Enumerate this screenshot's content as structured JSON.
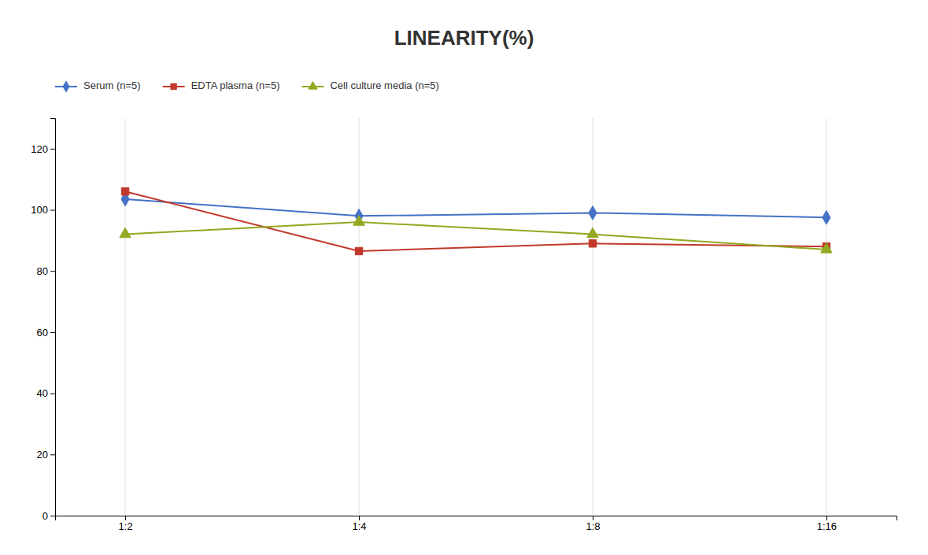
{
  "chart_data": {
    "type": "line",
    "title": "LINEARITY(%)",
    "categories": [
      "1:2",
      "1:4",
      "1:8",
      "1:16"
    ],
    "series": [
      {
        "name": "Serum (n=5)",
        "color": "#4472C4",
        "marker": "diamond",
        "values": [
          103.5,
          98.0,
          99.0,
          97.5
        ]
      },
      {
        "name": "EDTA plasma (n=5)",
        "color": "#C0392B",
        "marker": "square",
        "values": [
          106.0,
          86.5,
          89.0,
          88.0
        ]
      },
      {
        "name": "Cell culture media (n=5)",
        "color": "#92A820",
        "marker": "triangle",
        "values": [
          92.0,
          96.0,
          92.0,
          87.0
        ]
      }
    ],
    "ylim": [
      0,
      130
    ],
    "yticks": [
      0,
      20,
      40,
      60,
      80,
      100,
      120
    ],
    "grid": "x",
    "legend": "top"
  }
}
